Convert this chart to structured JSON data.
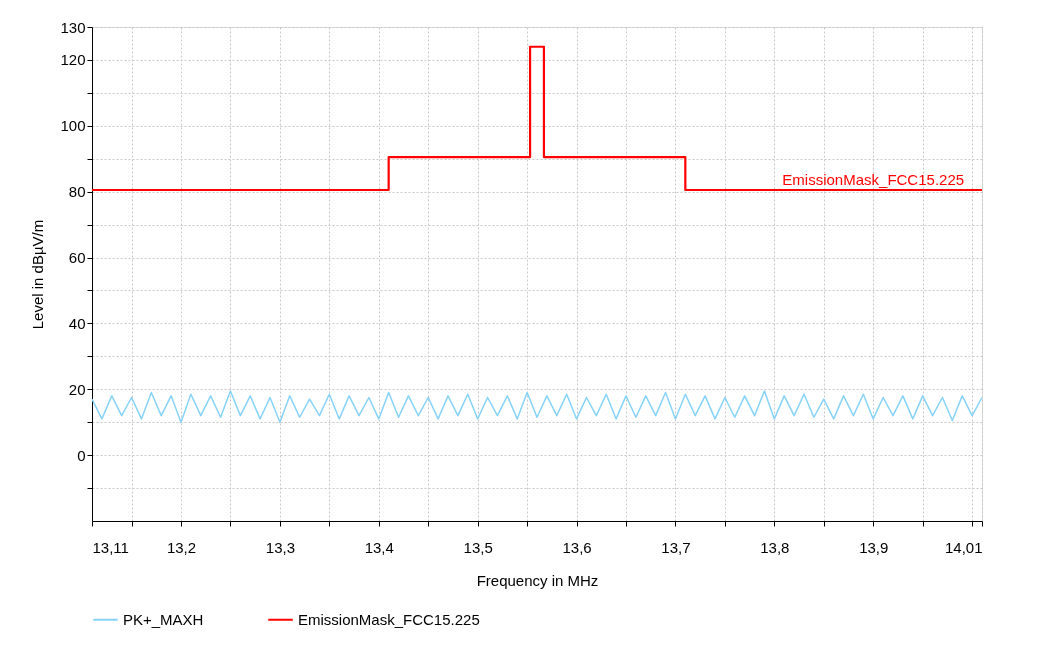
{
  "chart_data": {
    "type": "line",
    "xlabel": "Frequency in MHz",
    "ylabel": "Level in dBµV/m",
    "xlim": [
      13.11,
      14.01
    ],
    "xticks": [
      {
        "value": 13.11,
        "label": "13,11"
      },
      {
        "value": 13.15,
        "label": null
      },
      {
        "value": 13.2,
        "label": "13,2"
      },
      {
        "value": 13.25,
        "label": null
      },
      {
        "value": 13.3,
        "label": "13,3"
      },
      {
        "value": 13.35,
        "label": null
      },
      {
        "value": 13.4,
        "label": "13,4"
      },
      {
        "value": 13.45,
        "label": null
      },
      {
        "value": 13.5,
        "label": "13,5"
      },
      {
        "value": 13.55,
        "label": null
      },
      {
        "value": 13.6,
        "label": "13,6"
      },
      {
        "value": 13.65,
        "label": null
      },
      {
        "value": 13.7,
        "label": "13,7"
      },
      {
        "value": 13.75,
        "label": null
      },
      {
        "value": 13.8,
        "label": "13,8"
      },
      {
        "value": 13.85,
        "label": null
      },
      {
        "value": 13.9,
        "label": "13,9"
      },
      {
        "value": 13.95,
        "label": null
      },
      {
        "value": 14.0,
        "label": null
      },
      {
        "value": 14.01,
        "label": "14,01"
      }
    ],
    "ylim": [
      -20,
      130
    ],
    "yticks": [
      {
        "value": -10,
        "label": null
      },
      0,
      {
        "value": 10,
        "label": null
      },
      20,
      {
        "value": 30,
        "label": null
      },
      40,
      {
        "value": 50,
        "label": null
      },
      60,
      {
        "value": 70,
        "label": null
      },
      80,
      {
        "value": 90,
        "label": null
      },
      100,
      {
        "value": 110,
        "label": null
      },
      120,
      130
    ],
    "grid": true,
    "legend": "bottom",
    "annotations": [
      {
        "text": "EmissionMask_FCC15.225",
        "x": 13.9,
        "y": 80.5
      }
    ],
    "series": [
      {
        "name": "PK+_MAXH",
        "color": "#87d3f8",
        "type": "line",
        "x": [
          13.11,
          13.12,
          13.13,
          13.14,
          13.15,
          13.16,
          13.17,
          13.18,
          13.19,
          13.2,
          13.21,
          13.22,
          13.23,
          13.24,
          13.25,
          13.26,
          13.27,
          13.28,
          13.29,
          13.3,
          13.31,
          13.32,
          13.33,
          13.34,
          13.35,
          13.36,
          13.37,
          13.38,
          13.39,
          13.4,
          13.41,
          13.42,
          13.43,
          13.44,
          13.45,
          13.46,
          13.47,
          13.48,
          13.49,
          13.5,
          13.51,
          13.52,
          13.53,
          13.54,
          13.55,
          13.56,
          13.57,
          13.58,
          13.59,
          13.6,
          13.61,
          13.62,
          13.63,
          13.64,
          13.65,
          13.66,
          13.67,
          13.68,
          13.69,
          13.7,
          13.71,
          13.72,
          13.73,
          13.74,
          13.75,
          13.76,
          13.77,
          13.78,
          13.79,
          13.8,
          13.81,
          13.82,
          13.83,
          13.84,
          13.85,
          13.86,
          13.87,
          13.88,
          13.89,
          13.9,
          13.91,
          13.92,
          13.93,
          13.94,
          13.95,
          13.96,
          13.97,
          13.98,
          13.99,
          14.0,
          14.01
        ],
        "values": [
          17,
          11,
          18,
          12,
          17.5,
          11,
          19,
          12,
          18,
          10,
          18.5,
          12,
          18,
          11.5,
          19.5,
          12,
          18,
          11,
          17.5,
          10,
          18,
          11.5,
          17,
          12,
          18.5,
          11,
          18,
          12,
          17.5,
          11,
          19,
          11.5,
          18,
          12,
          17.5,
          11,
          18,
          12,
          18.5,
          11,
          17.5,
          12,
          18,
          11,
          19,
          11.5,
          18,
          12,
          18.5,
          11,
          17.5,
          12,
          18.5,
          11,
          18,
          11.5,
          18,
          12,
          19,
          11,
          18.5,
          12,
          18,
          11,
          17.5,
          11.5,
          18,
          12,
          19.5,
          11,
          18,
          12,
          18.5,
          11.5,
          17,
          11,
          18,
          12,
          18.5,
          11,
          17.5,
          12,
          18,
          11,
          18,
          12,
          17.5,
          10.5,
          18,
          12,
          17.5
        ]
      },
      {
        "name": "EmissionMask_FCC15.225",
        "color": "#ff0000",
        "type": "step",
        "x": [
          13.11,
          13.41,
          13.553,
          13.567,
          13.71,
          14.01
        ],
        "values": [
          80.5,
          90.5,
          124,
          90.5,
          80.5,
          80.5
        ]
      }
    ]
  }
}
